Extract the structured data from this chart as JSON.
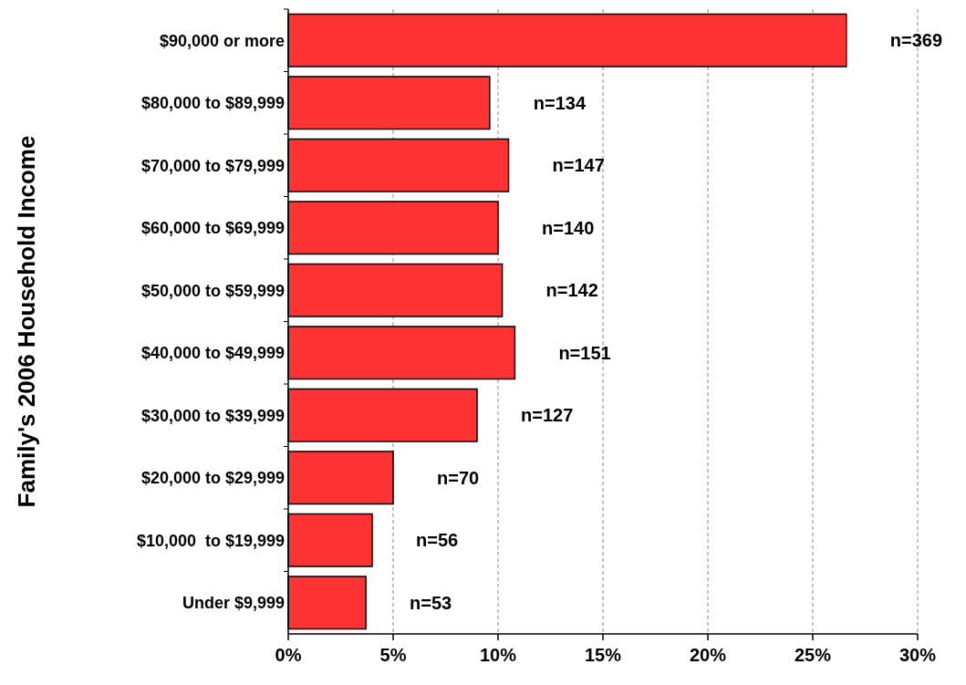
{
  "chart_data": {
    "type": "bar",
    "orientation": "horizontal",
    "ylabel": "Family's 2006 Household Income",
    "categories": [
      "$90,000 or more",
      "$80,000 to $89,999",
      "$70,000 to $79,999",
      "$60,000 to $69,999",
      "$50,000 to $59,999",
      "$40,000 to $49,999",
      "$30,000 to $39,999",
      "$20,000 to $29,999",
      "$10,000  to $19,999",
      "Under $9,999"
    ],
    "values": [
      26.6,
      9.6,
      10.5,
      10.0,
      10.2,
      10.8,
      9.0,
      5.0,
      4.0,
      3.7
    ],
    "annotations": [
      "n=369",
      "n=134",
      "n=147",
      "n=140",
      "n=142",
      "n=151",
      "n=127",
      "n=70",
      "n=56",
      "n=53"
    ],
    "color": "#ff3333",
    "xlim": [
      0,
      30
    ],
    "xticks": [
      {
        "value": 0,
        "label": "0%"
      },
      {
        "value": 5,
        "label": "5%"
      },
      {
        "value": 10,
        "label": "10%"
      },
      {
        "value": 15,
        "label": "15%"
      },
      {
        "value": 20,
        "label": "20%"
      },
      {
        "value": 25,
        "label": "25%"
      },
      {
        "value": 30,
        "label": "30%"
      }
    ],
    "grid": "x"
  }
}
